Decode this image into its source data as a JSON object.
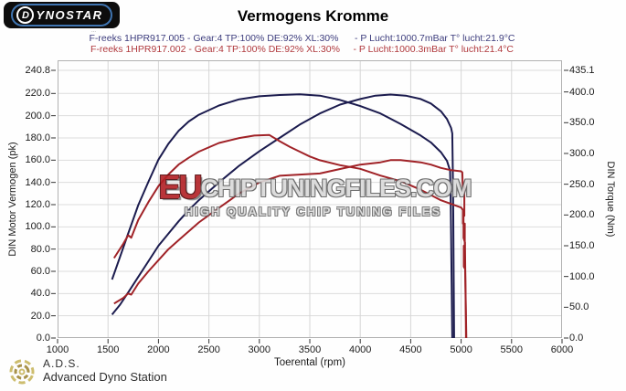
{
  "logo": {
    "d": "D",
    "rest": "YNOSTAR",
    "fine_print": "..."
  },
  "title": "Vermogens Kromme",
  "legend": [
    {
      "text": "F-reeks 1HPR917.005 - Gear:4 TP:100% DE:92% XL:30%      - P Lucht:1000.7mBar T° lucht:21.9°C",
      "color": "#3d3d7d"
    },
    {
      "text": "F-reeks 1HPR917.002 - Gear:4 TP:100% DE:92% XL:30%     - P Lucht:1000.3mBar T° lucht:21.4°C",
      "color": "#b0393d"
    }
  ],
  "watermark": {
    "eu": "EU",
    "domain": "CHIPTUNINGFILES.COM",
    "tagline": "HIGH QUALITY CHIP TUNING FILES"
  },
  "footer": {
    "abbr": "A.D.S.",
    "name": "Advanced Dyno Station"
  },
  "chart_data": {
    "type": "line",
    "grid": true,
    "x_axis": {
      "label": "Toerental (rpm)",
      "min": 1000,
      "max": 6000,
      "ticks": [
        1000,
        1500,
        2000,
        2500,
        3000,
        3500,
        4000,
        4500,
        5000,
        5500,
        6000
      ]
    },
    "y_left": {
      "label": "DIN Motor Vermogen (pk)",
      "min": 0,
      "max": 240.8,
      "ticks": [
        240.8,
        220.0,
        200.0,
        180.0,
        160.0,
        140.0,
        120.0,
        100.0,
        80.0,
        60.0,
        40.0,
        20.0,
        0.0
      ]
    },
    "y_right": {
      "label": "DIN Torque (Nm)",
      "min": 0,
      "max": 435.1,
      "ticks": [
        435.1,
        400.0,
        350.0,
        300.0,
        250.0,
        200.0,
        150.0,
        100.0,
        50.0,
        0.0
      ]
    },
    "series": [
      {
        "name": "power-run-005",
        "run": "1HPR917.005",
        "axis": "left",
        "unit": "pk",
        "color": "#1b1b4e",
        "peak": 219,
        "points": [
          [
            1540,
            21
          ],
          [
            1620,
            30
          ],
          [
            1700,
            41
          ],
          [
            1800,
            55
          ],
          [
            1900,
            69
          ],
          [
            2000,
            83
          ],
          [
            2100,
            94
          ],
          [
            2200,
            105
          ],
          [
            2300,
            115
          ],
          [
            2400,
            124
          ],
          [
            2600,
            140
          ],
          [
            2800,
            155
          ],
          [
            3000,
            168
          ],
          [
            3200,
            180
          ],
          [
            3400,
            192
          ],
          [
            3600,
            202
          ],
          [
            3800,
            210
          ],
          [
            4000,
            215
          ],
          [
            4150,
            218
          ],
          [
            4300,
            219
          ],
          [
            4450,
            218
          ],
          [
            4600,
            215
          ],
          [
            4700,
            211
          ],
          [
            4800,
            204
          ],
          [
            4860,
            197
          ],
          [
            4900,
            189
          ],
          [
            4912,
            184
          ],
          [
            4918,
            150
          ],
          [
            4922,
            110
          ],
          [
            4926,
            60
          ],
          [
            4930,
            0
          ]
        ]
      },
      {
        "name": "torque-run-005",
        "run": "1HPR917.005",
        "axis": "right",
        "unit": "Nm",
        "color": "#1b1b4e",
        "peak": 396,
        "points": [
          [
            1540,
            95
          ],
          [
            1620,
            132
          ],
          [
            1700,
            170
          ],
          [
            1800,
            216
          ],
          [
            1900,
            254
          ],
          [
            2000,
            290
          ],
          [
            2100,
            316
          ],
          [
            2200,
            337
          ],
          [
            2300,
            352
          ],
          [
            2400,
            363
          ],
          [
            2600,
            378
          ],
          [
            2800,
            388
          ],
          [
            3000,
            393
          ],
          [
            3200,
            395
          ],
          [
            3400,
            396
          ],
          [
            3600,
            394
          ],
          [
            3800,
            387
          ],
          [
            4000,
            377
          ],
          [
            4200,
            365
          ],
          [
            4400,
            348
          ],
          [
            4600,
            329
          ],
          [
            4700,
            318
          ],
          [
            4800,
            302
          ],
          [
            4860,
            288
          ],
          [
            4890,
            272
          ],
          [
            4896,
            230
          ],
          [
            4900,
            170
          ],
          [
            4906,
            90
          ],
          [
            4912,
            0
          ]
        ]
      },
      {
        "name": "power-run-002",
        "run": "1HPR917.002",
        "axis": "left",
        "unit": "pk",
        "color": "#a02227",
        "peak": 160,
        "points": [
          [
            1560,
            31
          ],
          [
            1650,
            36
          ],
          [
            1700,
            40
          ],
          [
            1730,
            39
          ],
          [
            1800,
            49
          ],
          [
            1900,
            60
          ],
          [
            2000,
            70
          ],
          [
            2100,
            80
          ],
          [
            2200,
            88
          ],
          [
            2300,
            96
          ],
          [
            2400,
            104
          ],
          [
            2600,
            117
          ],
          [
            2800,
            130
          ],
          [
            3000,
            140
          ],
          [
            3200,
            146
          ],
          [
            3400,
            147
          ],
          [
            3600,
            148
          ],
          [
            3800,
            152
          ],
          [
            4000,
            156
          ],
          [
            4200,
            158
          ],
          [
            4300,
            160
          ],
          [
            4400,
            160
          ],
          [
            4500,
            159
          ],
          [
            4600,
            158
          ],
          [
            4700,
            156
          ],
          [
            4800,
            153
          ],
          [
            4900,
            151
          ],
          [
            5000,
            150
          ],
          [
            5012,
            149
          ],
          [
            5016,
            136
          ],
          [
            5032,
            136
          ],
          [
            5032,
            110
          ],
          [
            5024,
            110
          ],
          [
            5024,
            90
          ],
          [
            5038,
            86
          ],
          [
            5042,
            55
          ],
          [
            5046,
            20
          ],
          [
            5048,
            0
          ]
        ]
      },
      {
        "name": "torque-run-002",
        "run": "1HPR917.002",
        "axis": "right",
        "unit": "Nm",
        "color": "#a02227",
        "peak": 330,
        "points": [
          [
            1560,
            130
          ],
          [
            1650,
            153
          ],
          [
            1700,
            167
          ],
          [
            1730,
            163
          ],
          [
            1800,
            192
          ],
          [
            1900,
            221
          ],
          [
            2000,
            247
          ],
          [
            2100,
            266
          ],
          [
            2200,
            282
          ],
          [
            2300,
            293
          ],
          [
            2400,
            303
          ],
          [
            2600,
            317
          ],
          [
            2800,
            325
          ],
          [
            2950,
            329
          ],
          [
            3100,
            330
          ],
          [
            3200,
            320
          ],
          [
            3300,
            311
          ],
          [
            3400,
            303
          ],
          [
            3500,
            295
          ],
          [
            3600,
            289
          ],
          [
            3800,
            281
          ],
          [
            4000,
            275
          ],
          [
            4200,
            264
          ],
          [
            4400,
            255
          ],
          [
            4600,
            241
          ],
          [
            4800,
            224
          ],
          [
            4900,
            218
          ],
          [
            5000,
            212
          ],
          [
            5018,
            208
          ],
          [
            5018,
            186
          ],
          [
            5036,
            186
          ],
          [
            5036,
            150
          ],
          [
            5026,
            150
          ],
          [
            5026,
            116
          ],
          [
            5040,
            112
          ],
          [
            5044,
            70
          ],
          [
            5048,
            35
          ],
          [
            5052,
            0
          ]
        ]
      }
    ]
  }
}
